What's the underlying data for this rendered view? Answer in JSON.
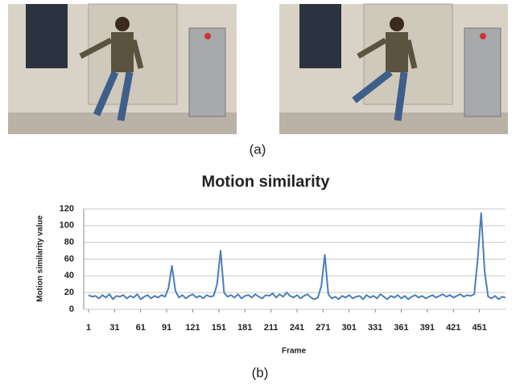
{
  "captions": [
    "(a)",
    "(b)"
  ],
  "chart_data": {
    "type": "line",
    "title": "Motion similarity",
    "xlabel": "Frame",
    "ylabel": "Motion similarity value",
    "color": "#4a7ebb",
    "grid": true,
    "x": [
      1,
      5,
      9,
      13,
      17,
      21,
      25,
      29,
      33,
      37,
      41,
      45,
      49,
      53,
      57,
      61,
      65,
      69,
      73,
      77,
      81,
      85,
      89,
      93,
      97,
      101,
      105,
      109,
      113,
      117,
      121,
      125,
      129,
      133,
      137,
      141,
      145,
      149,
      153,
      157,
      161,
      165,
      169,
      173,
      177,
      181,
      185,
      189,
      193,
      197,
      201,
      205,
      209,
      213,
      217,
      221,
      225,
      229,
      233,
      237,
      241,
      245,
      249,
      253,
      257,
      261,
      265,
      269,
      273,
      277,
      281,
      285,
      289,
      293,
      297,
      301,
      305,
      309,
      313,
      317,
      321,
      325,
      329,
      333,
      337,
      341,
      345,
      349,
      353,
      357,
      361,
      365,
      369,
      373,
      377,
      381,
      385,
      389,
      393,
      397,
      401,
      405,
      409,
      413,
      417,
      421,
      425,
      429,
      433,
      437,
      441,
      445,
      449,
      453,
      457,
      461,
      465,
      469,
      473,
      477,
      481
    ],
    "values": [
      17,
      15,
      16,
      13,
      17,
      14,
      18,
      12,
      16,
      15,
      17,
      13,
      16,
      14,
      18,
      12,
      15,
      17,
      13,
      16,
      14,
      17,
      15,
      25,
      52,
      22,
      14,
      17,
      13,
      16,
      18,
      14,
      16,
      13,
      17,
      15,
      16,
      30,
      70,
      20,
      15,
      17,
      14,
      18,
      13,
      16,
      17,
      14,
      18,
      15,
      13,
      17,
      16,
      19,
      14,
      18,
      15,
      20,
      16,
      14,
      17,
      13,
      16,
      18,
      14,
      12,
      14,
      28,
      65,
      18,
      13,
      15,
      12,
      16,
      14,
      17,
      13,
      15,
      16,
      12,
      17,
      14,
      16,
      13,
      18,
      15,
      12,
      16,
      14,
      17,
      13,
      16,
      12,
      15,
      17,
      14,
      16,
      13,
      15,
      17,
      14,
      16,
      18,
      15,
      17,
      14,
      16,
      18,
      15,
      17,
      16,
      18,
      60,
      115,
      45,
      15,
      13,
      16,
      12,
      15,
      14
    ],
    "xlim": [
      1,
      481
    ],
    "xticks": [
      1,
      31,
      61,
      91,
      121,
      151,
      181,
      211,
      241,
      271,
      301,
      331,
      361,
      391,
      421,
      451
    ],
    "ylim": [
      0,
      120
    ],
    "yticks": [
      0,
      20,
      40,
      60,
      80,
      100,
      120
    ]
  }
}
